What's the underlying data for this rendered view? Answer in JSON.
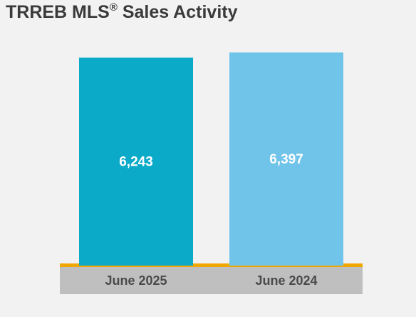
{
  "title": "TRREB MLS",
  "title_mark": "®",
  "title_suffix": " Sales Activity",
  "colors": {
    "background": "#f2f2f2",
    "title": "#3a3a3a",
    "baseline": "#f0a800",
    "axis_band": "#bfbfbf",
    "tick_label": "#4a4a4a",
    "value_label": "#ffffff"
  },
  "chart_data": {
    "type": "bar",
    "categories": [
      "June 2025",
      "June 2024"
    ],
    "values": [
      6243,
      6397
    ],
    "value_labels": [
      "6,243",
      "6,397"
    ],
    "bar_colors": [
      "#0aaac8",
      "#70c4e9"
    ],
    "ylim": [
      0,
      6600
    ],
    "grid": false,
    "legend": "none",
    "xlabel": "",
    "ylabel": ""
  }
}
